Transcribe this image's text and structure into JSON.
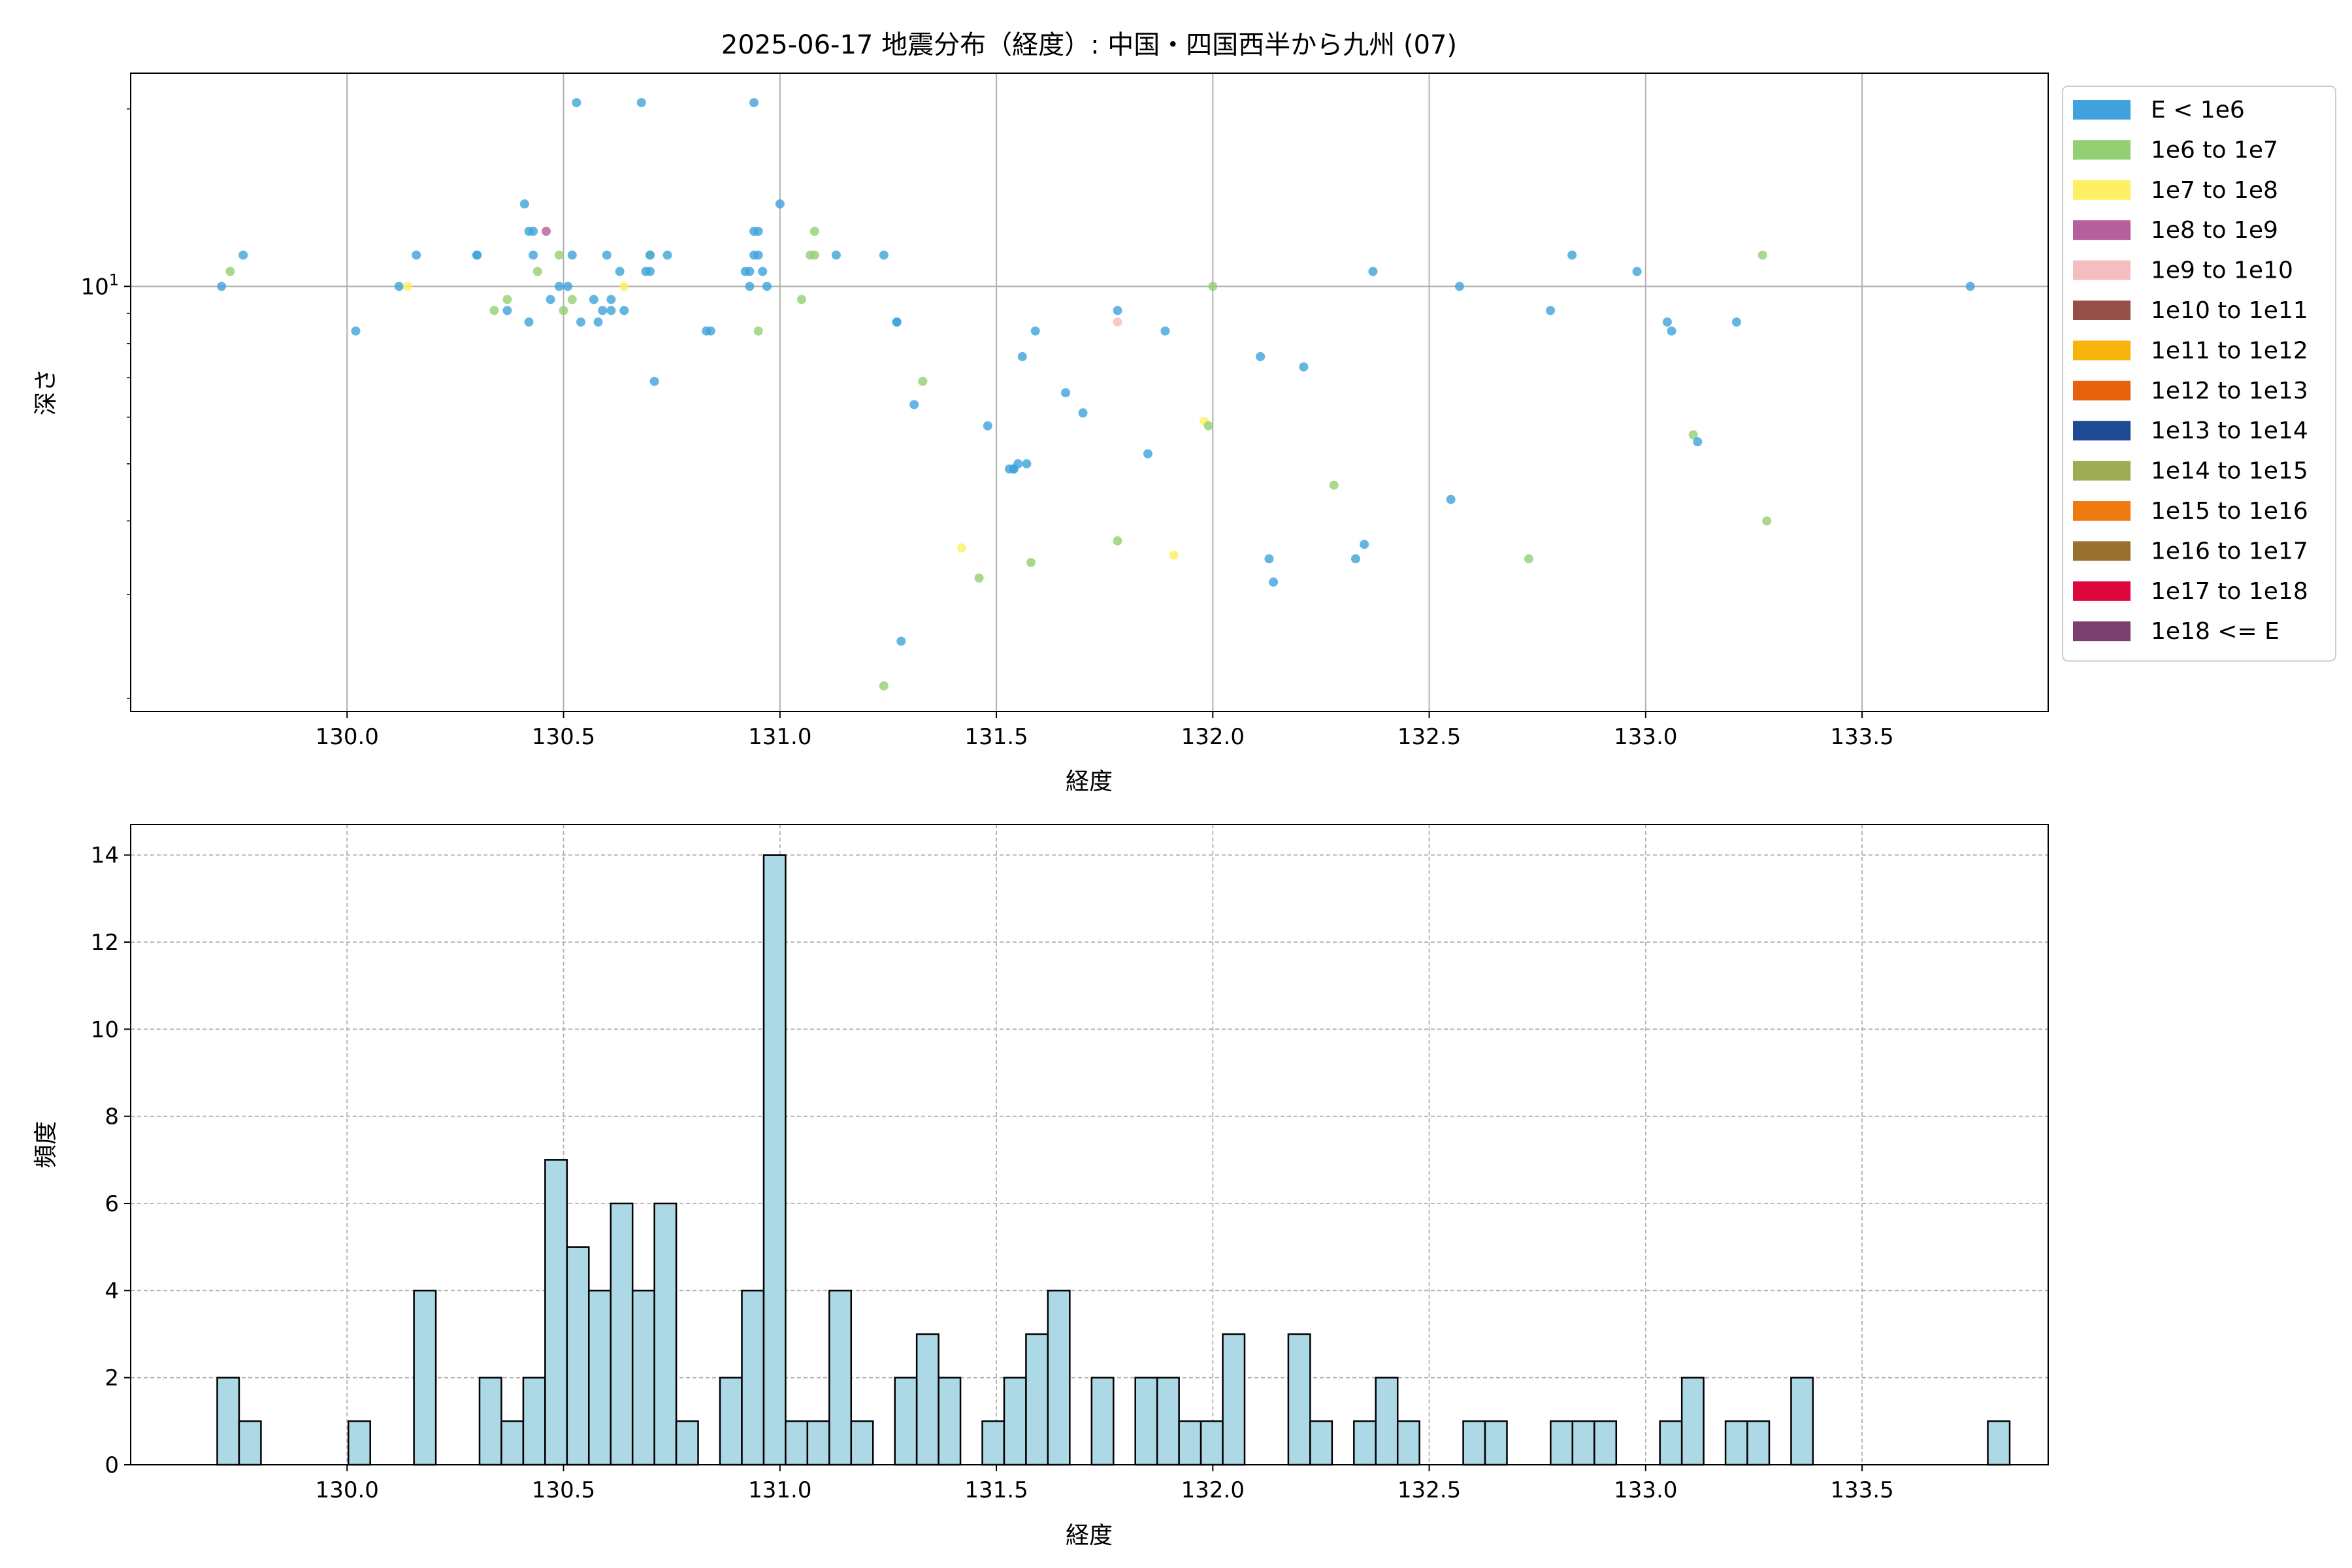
{
  "title": "2025-06-17 地震分布（経度）: 中国・四国西半から九州 (07)",
  "chart_data": [
    {
      "type": "scatter",
      "xlabel": "経度",
      "ylabel": "深さ",
      "yscale": "log",
      "ylim": [
        1.9,
        23
      ],
      "xlim": [
        129.5,
        133.93
      ],
      "x_ticks": [
        "130.0",
        "130.5",
        "131.0",
        "131.5",
        "132.0",
        "132.5",
        "133.0",
        "133.5"
      ],
      "y_tick_label": "10^1",
      "grid": true,
      "legend": {
        "placement": "outside-right",
        "entries": [
          {
            "label": "E < 1e6",
            "color": "#3fa2dc"
          },
          {
            "label": "1e6 to 1e7",
            "color": "#93cf73"
          },
          {
            "label": "1e7 to 1e8",
            "color": "#fdf062"
          },
          {
            "label": "1e8 to 1e9",
            "color": "#b65e9e"
          },
          {
            "label": "1e9 to 1e10",
            "color": "#f5bebe"
          },
          {
            "label": "1e10 to 1e11",
            "color": "#955148"
          },
          {
            "label": "1e11 to 1e12",
            "color": "#f8b30d"
          },
          {
            "label": "1e12 to 1e13",
            "color": "#e8610d"
          },
          {
            "label": "1e13 to 1e14",
            "color": "#1d4a93"
          },
          {
            "label": "1e14 to 1e15",
            "color": "#9ead53"
          },
          {
            "label": "1e15 to 1e16",
            "color": "#ef7b0e"
          },
          {
            "label": "1e16 to 1e17",
            "color": "#97712d"
          },
          {
            "label": "1e17 to 1e18",
            "color": "#dd063d"
          },
          {
            "label": "1e18 <= E",
            "color": "#7b4070"
          }
        ]
      },
      "points": [
        [
          129.71,
          10.0,
          0
        ],
        [
          129.73,
          10.6,
          1
        ],
        [
          129.76,
          11.3,
          0
        ],
        [
          130.02,
          8.4,
          0
        ],
        [
          130.12,
          10.0,
          0
        ],
        [
          130.14,
          10.0,
          2
        ],
        [
          130.16,
          11.3,
          0
        ],
        [
          130.3,
          11.3,
          0
        ],
        [
          130.3,
          11.3,
          0
        ],
        [
          130.34,
          9.1,
          1
        ],
        [
          130.37,
          9.1,
          0
        ],
        [
          130.37,
          9.5,
          1
        ],
        [
          130.41,
          13.8,
          0
        ],
        [
          130.42,
          8.7,
          0
        ],
        [
          130.42,
          12.4,
          0
        ],
        [
          130.43,
          12.4,
          0
        ],
        [
          130.43,
          11.3,
          0
        ],
        [
          130.44,
          10.6,
          1
        ],
        [
          130.46,
          12.4,
          3
        ],
        [
          130.47,
          9.5,
          0
        ],
        [
          130.49,
          11.3,
          1
        ],
        [
          130.49,
          10.0,
          0
        ],
        [
          130.5,
          9.1,
          1
        ],
        [
          130.51,
          10.0,
          0
        ],
        [
          130.52,
          9.5,
          1
        ],
        [
          130.52,
          11.3,
          0
        ],
        [
          130.53,
          20.5,
          0
        ],
        [
          130.54,
          8.7,
          0
        ],
        [
          130.57,
          9.5,
          0
        ],
        [
          130.58,
          8.7,
          0
        ],
        [
          130.59,
          9.1,
          0
        ],
        [
          130.6,
          11.3,
          0
        ],
        [
          130.61,
          9.5,
          0
        ],
        [
          130.61,
          9.1,
          0
        ],
        [
          130.63,
          10.6,
          0
        ],
        [
          130.64,
          9.1,
          0
        ],
        [
          130.64,
          10.0,
          2
        ],
        [
          130.68,
          20.5,
          0
        ],
        [
          130.69,
          10.6,
          0
        ],
        [
          130.7,
          11.3,
          1
        ],
        [
          130.7,
          10.6,
          0
        ],
        [
          130.7,
          11.3,
          0
        ],
        [
          130.71,
          6.9,
          0
        ],
        [
          130.74,
          11.3,
          0
        ],
        [
          130.83,
          8.4,
          0
        ],
        [
          130.84,
          8.4,
          0
        ],
        [
          130.92,
          10.6,
          0
        ],
        [
          130.93,
          10.6,
          0
        ],
        [
          130.93,
          10.0,
          0
        ],
        [
          130.94,
          20.5,
          0
        ],
        [
          130.94,
          11.3,
          0
        ],
        [
          130.94,
          12.4,
          0
        ],
        [
          130.95,
          11.3,
          0
        ],
        [
          130.95,
          12.4,
          0
        ],
        [
          130.95,
          8.4,
          1
        ],
        [
          130.96,
          10.6,
          0
        ],
        [
          130.97,
          10.0,
          0
        ],
        [
          131.0,
          13.8,
          0
        ],
        [
          131.05,
          9.5,
          1
        ],
        [
          131.07,
          11.3,
          1
        ],
        [
          131.08,
          12.4,
          1
        ],
        [
          131.08,
          11.3,
          1
        ],
        [
          131.13,
          11.3,
          0
        ],
        [
          131.24,
          11.3,
          0
        ],
        [
          131.27,
          8.7,
          0
        ],
        [
          131.27,
          8.7,
          0
        ],
        [
          131.31,
          6.3,
          0
        ],
        [
          131.33,
          6.9,
          1
        ],
        [
          131.42,
          3.6,
          2
        ],
        [
          131.46,
          3.2,
          1
        ],
        [
          131.48,
          5.8,
          0
        ],
        [
          131.53,
          4.9,
          0
        ],
        [
          131.54,
          4.9,
          0
        ],
        [
          131.54,
          4.9,
          0
        ],
        [
          131.55,
          5.0,
          0
        ],
        [
          131.57,
          5.0,
          0
        ],
        [
          131.56,
          7.6,
          0
        ],
        [
          131.58,
          3.4,
          1
        ],
        [
          131.59,
          8.4,
          0
        ],
        [
          131.66,
          6.6,
          0
        ],
        [
          131.7,
          6.1,
          0
        ],
        [
          131.78,
          3.7,
          1
        ],
        [
          131.78,
          9.1,
          0
        ],
        [
          131.78,
          8.7,
          4
        ],
        [
          131.85,
          5.2,
          0
        ],
        [
          131.89,
          8.4,
          0
        ],
        [
          131.91,
          3.5,
          2
        ],
        [
          131.98,
          5.9,
          2
        ],
        [
          131.99,
          5.8,
          1
        ],
        [
          132.0,
          10.0,
          1
        ],
        [
          132.11,
          7.6,
          0
        ],
        [
          132.13,
          3.45,
          0
        ],
        [
          132.14,
          3.15,
          0
        ],
        [
          132.21,
          7.3,
          0
        ],
        [
          132.28,
          4.6,
          1
        ],
        [
          132.33,
          3.45,
          0
        ],
        [
          132.35,
          3.65,
          0
        ],
        [
          132.37,
          10.6,
          0
        ],
        [
          132.55,
          4.35,
          0
        ],
        [
          132.57,
          10.0,
          0
        ],
        [
          132.73,
          3.45,
          1
        ],
        [
          132.78,
          9.1,
          0
        ],
        [
          132.83,
          11.3,
          0
        ],
        [
          132.98,
          10.6,
          0
        ],
        [
          133.05,
          8.7,
          0
        ],
        [
          133.06,
          8.4,
          0
        ],
        [
          133.11,
          5.6,
          1
        ],
        [
          133.12,
          5.45,
          0
        ],
        [
          133.21,
          8.7,
          0
        ],
        [
          133.27,
          11.3,
          1
        ],
        [
          133.28,
          4.0,
          1
        ],
        [
          133.75,
          10.0,
          0
        ],
        [
          131.24,
          2.1,
          1
        ],
        [
          131.28,
          2.5,
          0
        ]
      ]
    },
    {
      "type": "bar",
      "xlabel": "経度",
      "ylabel": "頻度",
      "xlim": [
        129.5,
        133.93
      ],
      "ylim": [
        0,
        14.7
      ],
      "y_ticks": [
        "0",
        "2",
        "4",
        "6",
        "8",
        "10",
        "12",
        "14"
      ],
      "x_ticks": [
        "130.0",
        "130.5",
        "131.0",
        "131.5",
        "132.0",
        "132.5",
        "133.0",
        "133.5"
      ],
      "grid": true,
      "bar_color": "#add8e6",
      "bin_start": 129.7,
      "bin_width": 0.0505,
      "counts": [
        2,
        1,
        0,
        0,
        0,
        0,
        1,
        0,
        0,
        4,
        0,
        0,
        2,
        1,
        2,
        7,
        5,
        4,
        6,
        4,
        6,
        1,
        0,
        2,
        4,
        14,
        1,
        1,
        4,
        1,
        0,
        2,
        3,
        2,
        0,
        1,
        2,
        3,
        4,
        0,
        2,
        0,
        2,
        2,
        1,
        1,
        3,
        0,
        0,
        3,
        1,
        0,
        1,
        2,
        1,
        0,
        0,
        1,
        1,
        0,
        0,
        1,
        1,
        1,
        0,
        0,
        1,
        2,
        0,
        1,
        1,
        0,
        2,
        0,
        0,
        0,
        0,
        0,
        0,
        0,
        0,
        1
      ]
    }
  ]
}
